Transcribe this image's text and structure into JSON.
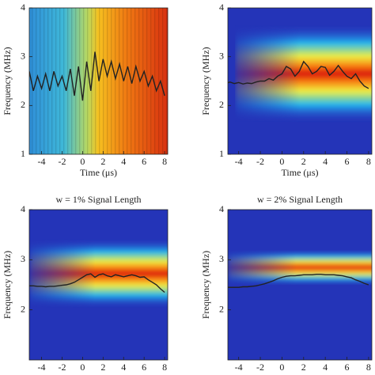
{
  "chart_data": [
    {
      "type": "line",
      "xlabel": "Time (μs)",
      "ylabel": "Frequency (MHz)",
      "xlim": [
        -5.2,
        8.3
      ],
      "ylim": [
        1,
        4
      ],
      "xticks": [
        -4,
        -2,
        0,
        2,
        4,
        6,
        8
      ],
      "yticks": [
        1,
        2,
        3,
        4
      ],
      "x": [
        -5.2,
        -4.8,
        -4.4,
        -4.0,
        -3.6,
        -3.2,
        -2.8,
        -2.4,
        -2.0,
        -1.6,
        -1.2,
        -0.8,
        -0.4,
        0.0,
        0.4,
        0.8,
        1.2,
        1.6,
        2.0,
        2.4,
        2.8,
        3.2,
        3.6,
        4.0,
        4.4,
        4.8,
        5.2,
        5.6,
        6.0,
        6.4,
        6.8,
        7.2,
        7.6,
        8.0
      ],
      "series": [
        {
          "color": "#222222",
          "values": [
            2.7,
            2.3,
            2.6,
            2.35,
            2.65,
            2.3,
            2.7,
            2.4,
            2.6,
            2.3,
            2.75,
            2.2,
            2.8,
            2.1,
            2.9,
            2.3,
            3.1,
            2.5,
            2.95,
            2.6,
            2.9,
            2.55,
            2.85,
            2.5,
            2.8,
            2.45,
            2.8,
            2.5,
            2.7,
            2.4,
            2.6,
            2.3,
            2.5,
            2.2
          ]
        }
      ]
    },
    {
      "type": "line",
      "xlabel": "Time (μs)",
      "ylabel": "Frequency (MHz)",
      "xlim": [
        -5.0,
        8.3
      ],
      "ylim": [
        1,
        4
      ],
      "xticks": [
        -4,
        -2,
        0,
        2,
        4,
        6,
        8
      ],
      "yticks": [
        1,
        2,
        3,
        4
      ],
      "x": [
        -5.2,
        -4.8,
        -4.4,
        -4.0,
        -3.6,
        -3.2,
        -2.8,
        -2.4,
        -2.0,
        -1.6,
        -1.2,
        -0.8,
        -0.4,
        0.0,
        0.4,
        0.8,
        1.2,
        1.6,
        2.0,
        2.4,
        2.8,
        3.2,
        3.6,
        4.0,
        4.4,
        4.8,
        5.2,
        5.6,
        6.0,
        6.4,
        6.8,
        7.2,
        7.6,
        8.0
      ],
      "series": [
        {
          "color": "#222222",
          "values": [
            2.45,
            2.48,
            2.45,
            2.47,
            2.44,
            2.46,
            2.45,
            2.48,
            2.5,
            2.5,
            2.55,
            2.52,
            2.6,
            2.65,
            2.8,
            2.75,
            2.6,
            2.7,
            2.9,
            2.8,
            2.65,
            2.7,
            2.8,
            2.78,
            2.62,
            2.7,
            2.82,
            2.7,
            2.6,
            2.55,
            2.65,
            2.5,
            2.4,
            2.35
          ]
        }
      ]
    },
    {
      "type": "line",
      "title": "w = 1% Signal Length",
      "ylabel": "Frequency (MHz)",
      "xlim": [
        -5.2,
        8.3
      ],
      "ylim": [
        1,
        4
      ],
      "xticks": [
        -4,
        -2,
        0,
        2,
        4,
        6,
        8
      ],
      "yticks": [
        2,
        3,
        4
      ],
      "x": [
        -5.2,
        -4.8,
        -4.4,
        -4.0,
        -3.6,
        -3.2,
        -2.8,
        -2.4,
        -2.0,
        -1.6,
        -1.2,
        -0.8,
        -0.4,
        0.0,
        0.4,
        0.8,
        1.2,
        1.6,
        2.0,
        2.4,
        2.8,
        3.2,
        3.6,
        4.0,
        4.4,
        4.8,
        5.2,
        5.6,
        6.0,
        6.4,
        6.8,
        7.2,
        7.6,
        8.0
      ],
      "series": [
        {
          "color": "#222222",
          "values": [
            2.48,
            2.48,
            2.47,
            2.47,
            2.46,
            2.47,
            2.47,
            2.48,
            2.49,
            2.5,
            2.52,
            2.55,
            2.6,
            2.65,
            2.7,
            2.72,
            2.65,
            2.7,
            2.72,
            2.68,
            2.66,
            2.7,
            2.68,
            2.66,
            2.68,
            2.7,
            2.68,
            2.65,
            2.66,
            2.6,
            2.55,
            2.5,
            2.42,
            2.35
          ]
        }
      ]
    },
    {
      "type": "line",
      "title": "w = 2% Signal Length",
      "ylabel": "Frequency (MHz)",
      "xlim": [
        -5.0,
        8.3
      ],
      "ylim": [
        1,
        4
      ],
      "xticks": [
        -4,
        -2,
        0,
        2,
        4,
        6,
        8
      ],
      "yticks": [
        2,
        3,
        4
      ],
      "x": [
        -5.2,
        -4.8,
        -4.4,
        -4.0,
        -3.6,
        -3.2,
        -2.8,
        -2.4,
        -2.0,
        -1.6,
        -1.2,
        -0.8,
        -0.4,
        0.0,
        0.4,
        0.8,
        1.2,
        1.6,
        2.0,
        2.4,
        2.8,
        3.2,
        3.6,
        4.0,
        4.4,
        4.8,
        5.2,
        5.6,
        6.0,
        6.4,
        6.8,
        7.2,
        7.6,
        8.0
      ],
      "series": [
        {
          "color": "#222222",
          "values": [
            2.45,
            2.45,
            2.45,
            2.45,
            2.46,
            2.46,
            2.47,
            2.48,
            2.5,
            2.52,
            2.55,
            2.58,
            2.62,
            2.65,
            2.67,
            2.68,
            2.68,
            2.69,
            2.7,
            2.7,
            2.7,
            2.71,
            2.71,
            2.7,
            2.7,
            2.7,
            2.69,
            2.68,
            2.66,
            2.64,
            2.6,
            2.57,
            2.53,
            2.5
          ]
        }
      ]
    }
  ]
}
